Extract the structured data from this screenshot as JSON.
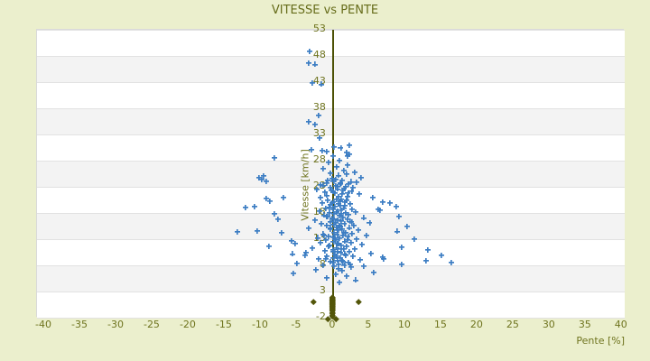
{
  "title": "VITESSE vs PENTE",
  "colors": {
    "background": "#ebefcd",
    "plot_background": "#ffffff",
    "band_alt": "#f3f3f3",
    "gridline": "#e2e2e2",
    "text_olive": "#6f741f",
    "title_olive": "#666c1a",
    "zero_axis": "#4c5105",
    "series_blue": "#3c7dc3",
    "series_olive": "#53560a"
  },
  "chart_data": {
    "type": "scatter",
    "title": "VITESSE vs PENTE",
    "xlabel": "Pente [%]",
    "ylabel": "Vitesse [km/h]",
    "xlim": [
      -41,
      40.4
    ],
    "ylim": [
      -2,
      53
    ],
    "x_ticks": [
      -40,
      -35,
      -30,
      -25,
      -20,
      -15,
      -10,
      -5,
      0,
      5,
      10,
      15,
      20,
      25,
      30,
      35,
      40
    ],
    "y_ticks": [
      53,
      48,
      43,
      38,
      33,
      28,
      23,
      18,
      13,
      8,
      3,
      -2
    ],
    "grid": "horizontal gridlines, alternating white/gray bands, vertical dark-olive line at x=0",
    "legend": "none",
    "series": [
      {
        "name": "vitesse",
        "marker": "plus",
        "color": "#3c7dc3",
        "points": [
          [
            -3.1,
            48.7
          ],
          [
            -3.3,
            46.5
          ],
          [
            -2.4,
            46.2
          ],
          [
            -2.7,
            42.6
          ],
          [
            -1.5,
            42.4
          ],
          [
            -1.9,
            36.4
          ],
          [
            -3.2,
            35.2
          ],
          [
            -2.4,
            34.7
          ],
          [
            -1.8,
            32.1
          ],
          [
            2.4,
            30.7
          ],
          [
            0.3,
            30.4
          ],
          [
            1.2,
            30.2
          ],
          [
            -2.9,
            29.9
          ],
          [
            -1.4,
            29.8
          ],
          [
            -0.7,
            29.5
          ],
          [
            2.0,
            29.4
          ],
          [
            2.4,
            29.0
          ],
          [
            0.1,
            28.7
          ],
          [
            2.1,
            28.7
          ],
          [
            -8.0,
            28.3
          ],
          [
            1.0,
            27.8
          ],
          [
            -0.5,
            27.5
          ],
          [
            2.1,
            27.0
          ],
          [
            0.6,
            26.6
          ],
          [
            -1.2,
            26.3
          ],
          [
            1.6,
            26.0
          ],
          [
            3.1,
            25.6
          ],
          [
            -0.2,
            25.4
          ],
          [
            2.0,
            25.3
          ],
          [
            0.9,
            25.0
          ],
          [
            -9.5,
            24.9
          ],
          [
            -10.1,
            24.6
          ],
          [
            4.0,
            24.6
          ],
          [
            0.0,
            24.4
          ],
          [
            -9.8,
            24.2
          ],
          [
            1.4,
            24.1
          ],
          [
            0.5,
            24.2
          ],
          [
            -0.6,
            24.0
          ],
          [
            0.2,
            23.9
          ],
          [
            -9.1,
            23.9
          ],
          [
            2.6,
            23.8
          ],
          [
            3.4,
            23.7
          ],
          [
            1.2,
            23.6
          ],
          [
            -0.8,
            23.5
          ],
          [
            2.3,
            23.4
          ],
          [
            1.1,
            23.3
          ],
          [
            -1.6,
            23.2
          ],
          [
            -1.3,
            23.1
          ],
          [
            0.5,
            23.0
          ],
          [
            1.9,
            22.9
          ],
          [
            0.8,
            22.8
          ],
          [
            -0.3,
            22.7
          ],
          [
            2.9,
            22.6
          ],
          [
            1.7,
            22.5
          ],
          [
            0.8,
            22.4
          ],
          [
            -2.1,
            22.3
          ],
          [
            -0.1,
            22.2
          ],
          [
            1.5,
            22.1
          ],
          [
            2.7,
            22.0
          ],
          [
            0.1,
            21.9
          ],
          [
            -1.0,
            21.8
          ],
          [
            2.2,
            21.7
          ],
          [
            0.4,
            21.6
          ],
          [
            3.8,
            21.5
          ],
          [
            1.4,
            21.4
          ],
          [
            -0.7,
            21.2
          ],
          [
            2.1,
            21.0
          ],
          [
            0.9,
            20.9
          ],
          [
            -6.8,
            20.8
          ],
          [
            5.6,
            20.8
          ],
          [
            -1.6,
            20.7
          ],
          [
            -9.1,
            20.6
          ],
          [
            0.6,
            20.5
          ],
          [
            1.3,
            20.4
          ],
          [
            -0.6,
            20.3
          ],
          [
            2.0,
            20.2
          ],
          [
            -8.6,
            20.1
          ],
          [
            1.1,
            20.1
          ],
          [
            0.2,
            20.0
          ],
          [
            1.8,
            19.9
          ],
          [
            7.0,
            19.9
          ],
          [
            -1.4,
            19.8
          ],
          [
            8.0,
            19.8
          ],
          [
            0.0,
            19.7
          ],
          [
            0.9,
            19.6
          ],
          [
            2.5,
            19.5
          ],
          [
            -0.2,
            19.4
          ],
          [
            1.8,
            19.3
          ],
          [
            1.1,
            19.2
          ],
          [
            8.9,
            19.1
          ],
          [
            -10.8,
            19.1
          ],
          [
            0.4,
            19.0
          ],
          [
            -12.0,
            18.9
          ],
          [
            -0.4,
            18.9
          ],
          [
            1.6,
            18.8
          ],
          [
            -0.9,
            18.7
          ],
          [
            2.8,
            18.6
          ],
          [
            6.4,
            18.6
          ],
          [
            0.1,
            18.5
          ],
          [
            6.6,
            18.4
          ],
          [
            1.2,
            18.3
          ],
          [
            -1.8,
            18.2
          ],
          [
            0.7,
            18.1
          ],
          [
            3.3,
            18.0
          ],
          [
            0.6,
            18.0
          ],
          [
            -0.4,
            17.9
          ],
          [
            1.9,
            17.8
          ],
          [
            -8.0,
            17.7
          ],
          [
            1.3,
            17.7
          ],
          [
            0.3,
            17.6
          ],
          [
            2.3,
            17.5
          ],
          [
            -1.1,
            17.4
          ],
          [
            1.0,
            17.3
          ],
          [
            9.3,
            17.2
          ],
          [
            -0.8,
            17.2
          ],
          [
            -0.6,
            17.1
          ],
          [
            1.5,
            17.0
          ],
          [
            4.4,
            16.9
          ],
          [
            0.0,
            16.8
          ],
          [
            2.1,
            16.7
          ],
          [
            -7.5,
            16.6
          ],
          [
            0.3,
            16.6
          ],
          [
            0.8,
            16.5
          ],
          [
            -2.4,
            16.4
          ],
          [
            1.3,
            16.3
          ],
          [
            -0.3,
            16.2
          ],
          [
            2.5,
            16.2
          ],
          [
            2.7,
            16.1
          ],
          [
            5.2,
            16.0
          ],
          [
            0.5,
            15.9
          ],
          [
            1.7,
            15.8
          ],
          [
            -1.5,
            15.7
          ],
          [
            0.2,
            15.6
          ],
          [
            3.0,
            15.5
          ],
          [
            1.0,
            15.5
          ],
          [
            -0.8,
            15.4
          ],
          [
            1.1,
            15.3
          ],
          [
            10.4,
            15.2
          ],
          [
            0.6,
            15.1
          ],
          [
            -0.2,
            15.0
          ],
          [
            2.4,
            15.0
          ],
          [
            -3.2,
            14.9
          ],
          [
            1.4,
            14.8
          ],
          [
            -0.2,
            14.7
          ],
          [
            0.9,
            14.6
          ],
          [
            3.6,
            14.5
          ],
          [
            0.7,
            14.5
          ],
          [
            -10.4,
            14.4
          ],
          [
            9.0,
            14.3
          ],
          [
            -13.1,
            14.2
          ],
          [
            1.9,
            14.1
          ],
          [
            0.3,
            14.0
          ],
          [
            -7.0,
            14.0
          ],
          [
            1.6,
            14.0
          ],
          [
            2.8,
            13.9
          ],
          [
            -1.2,
            13.8
          ],
          [
            0.7,
            13.7
          ],
          [
            4.8,
            13.6
          ],
          [
            1.5,
            13.5
          ],
          [
            -1.1,
            13.5
          ],
          [
            -0.5,
            13.4
          ],
          [
            2.2,
            13.3
          ],
          [
            0.1,
            13.2
          ],
          [
            -2.0,
            13.1
          ],
          [
            0.4,
            13.1
          ],
          [
            1.0,
            13.0
          ],
          [
            11.4,
            12.9
          ],
          [
            3.4,
            12.8
          ],
          [
            0.5,
            12.7
          ],
          [
            -0.9,
            12.6
          ],
          [
            2.1,
            12.6
          ],
          [
            -5.6,
            12.5
          ],
          [
            1.8,
            12.4
          ],
          [
            0.2,
            12.3
          ],
          [
            2.6,
            12.2
          ],
          [
            -1.6,
            12.1
          ],
          [
            -5.1,
            12.0
          ],
          [
            0.8,
            12.0
          ],
          [
            0.9,
            11.9
          ],
          [
            4.1,
            11.8
          ],
          [
            1.3,
            11.7
          ],
          [
            -0.4,
            11.6
          ],
          [
            -8.8,
            11.5
          ],
          [
            -0.5,
            11.5
          ],
          [
            2.0,
            11.4
          ],
          [
            9.6,
            11.3
          ],
          [
            0.6,
            11.2
          ],
          [
            -2.8,
            11.1
          ],
          [
            1.6,
            11.0
          ],
          [
            1.2,
            11.0
          ],
          [
            3.1,
            10.9
          ],
          [
            0.1,
            10.8
          ],
          [
            13.3,
            10.7
          ],
          [
            -1.0,
            10.6
          ],
          [
            2.4,
            10.5
          ],
          [
            0.2,
            10.5
          ],
          [
            0.8,
            10.4
          ],
          [
            -3.6,
            10.3
          ],
          [
            1.2,
            10.2
          ],
          [
            5.4,
            10.1
          ],
          [
            -5.5,
            10.0
          ],
          [
            1.8,
            10.0
          ],
          [
            0.4,
            9.9
          ],
          [
            15.1,
            9.8
          ],
          [
            -3.8,
            9.8
          ],
          [
            1.9,
            9.7
          ],
          [
            -0.7,
            9.6
          ],
          [
            2.9,
            9.5
          ],
          [
            0.6,
            9.5
          ],
          [
            7.0,
            9.4
          ],
          [
            0.2,
            9.3
          ],
          [
            1.1,
            9.2
          ],
          [
            7.1,
            9.1
          ],
          [
            -0.9,
            9.1
          ],
          [
            -1.9,
            9.0
          ],
          [
            3.9,
            8.9
          ],
          [
            0.7,
            8.8
          ],
          [
            13.0,
            8.7
          ],
          [
            1.4,
            8.7
          ],
          [
            1.5,
            8.6
          ],
          [
            -0.3,
            8.5
          ],
          [
            2.2,
            8.4
          ],
          [
            16.5,
            8.3
          ],
          [
            0.1,
            8.3
          ],
          [
            -4.9,
            8.2
          ],
          [
            0.9,
            8.1
          ],
          [
            9.6,
            8.0
          ],
          [
            2.5,
            8.0
          ],
          [
            1.7,
            7.9
          ],
          [
            -1.3,
            7.8
          ],
          [
            4.4,
            7.7
          ],
          [
            0.3,
            7.6
          ],
          [
            2.6,
            7.5
          ],
          [
            0.9,
            7.2
          ],
          [
            -2.2,
            7.0
          ],
          [
            1.4,
            6.8
          ],
          [
            5.8,
            6.5
          ],
          [
            -5.4,
            6.3
          ],
          [
            0.5,
            6.1
          ],
          [
            2.0,
            5.8
          ],
          [
            -0.8,
            5.4
          ],
          [
            3.3,
            5.0
          ],
          [
            1.0,
            4.6
          ]
        ]
      },
      {
        "name": "points-at-zero-slope",
        "marker": "diamond",
        "color": "#53560a",
        "points": [
          [
            0,
            1.7
          ],
          [
            0,
            1.55
          ],
          [
            0,
            1.4
          ],
          [
            0,
            1.3
          ],
          [
            0,
            1.2
          ],
          [
            0,
            1.1
          ],
          [
            0,
            1.0
          ],
          [
            0,
            0.9
          ],
          [
            0,
            0.8
          ],
          [
            0,
            0.7
          ],
          [
            0,
            0.6
          ],
          [
            0,
            0.5
          ],
          [
            0,
            0.4
          ],
          [
            0,
            0.3
          ],
          [
            0,
            0.2
          ],
          [
            0,
            0.1
          ],
          [
            0,
            0.0
          ],
          [
            0,
            -0.15
          ],
          [
            0,
            -0.3
          ],
          [
            0,
            -0.5
          ],
          [
            0,
            -0.7
          ],
          [
            0,
            -0.9
          ],
          [
            0,
            -1.1
          ],
          [
            0,
            -1.4
          ],
          [
            0,
            -1.7
          ],
          [
            0,
            -1.9
          ],
          [
            -2.6,
            0.9
          ],
          [
            3.7,
            0.9
          ],
          [
            -0.6,
            -2.3
          ],
          [
            0.5,
            -2.3
          ]
        ]
      }
    ]
  }
}
